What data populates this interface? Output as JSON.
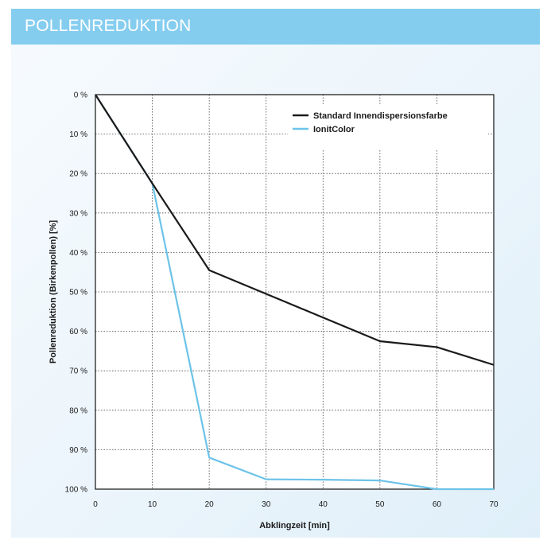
{
  "header": {
    "title": "POLLENREDUKTION"
  },
  "colors": {
    "header_bg": "#85cdef",
    "series_standard": "#1a1a1a",
    "series_ionit": "#6cc3e8"
  },
  "chart_data": {
    "type": "line",
    "title": "",
    "xlabel": "Abklingzeit [min]",
    "ylabel": "Pollenreduktion (Birkenpollen) [%]",
    "xlim": [
      0,
      70
    ],
    "ylim": [
      0,
      100
    ],
    "y_inverted": true,
    "grid": true,
    "legend_position": "top-right",
    "x_ticks": [
      0,
      10,
      20,
      30,
      40,
      50,
      60,
      70
    ],
    "x_tick_labels": [
      "0",
      "10",
      "20",
      "30",
      "40",
      "50",
      "60",
      "70"
    ],
    "y_ticks": [
      0,
      10,
      20,
      30,
      40,
      50,
      60,
      70,
      80,
      90,
      100
    ],
    "y_tick_labels": [
      "0 %",
      "10 %",
      "20 %",
      "30 %",
      "40 %",
      "50 %",
      "60 %",
      "70 %",
      "80 %",
      "90 %",
      "100 %"
    ],
    "series": [
      {
        "name": "Standard Innendispersionsfarbe",
        "color": "#1a1a1a",
        "x": [
          0,
          10,
          20,
          30,
          40,
          50,
          60,
          70
        ],
        "y": [
          0,
          22.5,
          44.5,
          50.5,
          56.5,
          62.5,
          64,
          68.5
        ]
      },
      {
        "name": "IonitColor",
        "color": "#6cc3e8",
        "x": [
          0,
          10,
          20,
          30,
          40,
          50,
          60,
          70
        ],
        "y": [
          0,
          22.5,
          92,
          97.5,
          97.6,
          97.8,
          100,
          100
        ]
      }
    ]
  }
}
